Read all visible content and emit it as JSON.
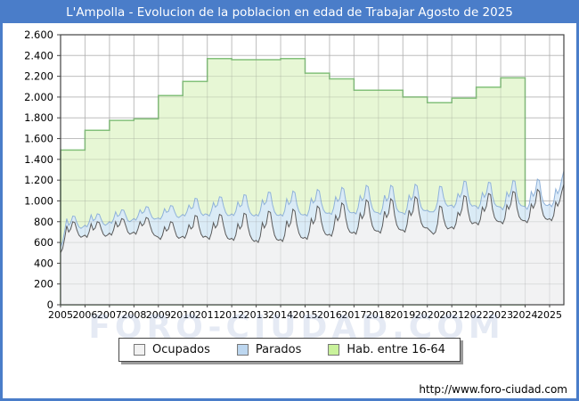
{
  "window": {
    "title": "L'Ampolla - Evolucion de la poblacion en edad de Trabajar Agosto de 2025"
  },
  "watermark": "FORO-CIUDAD.COM",
  "footer": {
    "url": "http://www.foro-ciudad.com"
  },
  "colors": {
    "frame_blue": "#4a7dc9",
    "grid": "#cfcfcf",
    "plot_border": "#444444",
    "ocupados_fill": "#f2f2f2",
    "ocupados_stroke": "#5a5a5a",
    "parados_fill": "#d9e9f9",
    "parados_stroke": "#8fb2da",
    "hab_fill": "#e3f6ce",
    "hab_stroke": "#83c17a"
  },
  "chart_data": {
    "type": "area",
    "title": "L'Ampolla - Evolucion de la poblacion en edad de Trabajar Agosto de 2025",
    "xlabel": "",
    "ylabel": "",
    "ylim": [
      0,
      2600
    ],
    "ytick_step": 200,
    "ytick_labels": [
      "0",
      "200",
      "400",
      "600",
      "800",
      "1.000",
      "1.200",
      "1.400",
      "1.600",
      "1.800",
      "2.000",
      "2.200",
      "2.400",
      "2.600"
    ],
    "xtick_labels": [
      "2005",
      "2006",
      "2007",
      "2008",
      "2009",
      "2010",
      "2011",
      "2012",
      "2013",
      "2014",
      "2015",
      "2016",
      "2017",
      "2018",
      "2019",
      "2020",
      "2021",
      "2022",
      "2023",
      "2024",
      "2025"
    ],
    "grid": true,
    "legend_position": "bottom",
    "start_year": 2005,
    "end_label": "Agosto 2025",
    "legend": [
      {
        "label": "Ocupados",
        "swatch": "#f2f2f2"
      },
      {
        "label": "Parados",
        "swatch": "#bdd7f0"
      },
      {
        "label": "Hab. entre 16-64",
        "swatch": "#c9f29b"
      }
    ],
    "series": [
      {
        "name": "Ocupados",
        "kind": "monthly",
        "values": [
          500,
          540,
          640,
          760,
          700,
          730,
          800,
          790,
          720,
          670,
          650,
          660,
          670,
          650,
          700,
          780,
          720,
          740,
          800,
          790,
          730,
          680,
          660,
          670,
          690,
          670,
          720,
          800,
          750,
          770,
          830,
          820,
          760,
          700,
          680,
          690,
          700,
          680,
          730,
          800,
          760,
          780,
          840,
          830,
          760,
          700,
          670,
          660,
          650,
          630,
          670,
          750,
          710,
          730,
          800,
          790,
          720,
          660,
          640,
          650,
          660,
          640,
          690,
          770,
          730,
          750,
          860,
          850,
          750,
          680,
          650,
          660,
          650,
          630,
          690,
          790,
          740,
          770,
          870,
          860,
          760,
          680,
          640,
          630,
          640,
          620,
          670,
          780,
          730,
          760,
          880,
          870,
          750,
          670,
          630,
          610,
          620,
          600,
          660,
          790,
          740,
          780,
          900,
          890,
          760,
          670,
          630,
          620,
          630,
          610,
          670,
          810,
          750,
          790,
          920,
          900,
          770,
          690,
          650,
          640,
          650,
          630,
          700,
          830,
          780,
          820,
          950,
          930,
          800,
          720,
          680,
          670,
          680,
          660,
          730,
          860,
          810,
          850,
          980,
          960,
          830,
          740,
          700,
          690,
          700,
          680,
          750,
          880,
          830,
          870,
          1010,
          990,
          850,
          760,
          720,
          710,
          710,
          690,
          760,
          900,
          840,
          880,
          1020,
          1000,
          860,
          770,
          730,
          720,
          720,
          700,
          770,
          910,
          860,
          900,
          1040,
          1020,
          880,
          790,
          750,
          740,
          740,
          720,
          700,
          680,
          700,
          780,
          950,
          940,
          830,
          760,
          730,
          740,
          750,
          730,
          780,
          890,
          860,
          920,
          1050,
          1040,
          900,
          810,
          780,
          790,
          790,
          770,
          820,
          940,
          900,
          950,
          1070,
          1060,
          920,
          840,
          810,
          800,
          800,
          780,
          830,
          960,
          920,
          970,
          1090,
          1080,
          930,
          850,
          820,
          810,
          810,
          790,
          840,
          970,
          930,
          980,
          1110,
          1090,
          940,
          860,
          830,
          820,
          830,
          810,
          860,
          990,
          950,
          1000,
          1090,
          1160
        ]
      },
      {
        "name": "Parados",
        "kind": "monthly-stacked-on-Ocupados",
        "values": [
          60,
          65,
          70,
          70,
          65,
          60,
          55,
          60,
          70,
          80,
          85,
          90,
          95,
          100,
          95,
          85,
          90,
          85,
          75,
          80,
          90,
          100,
          105,
          110,
          110,
          115,
          105,
          95,
          100,
          95,
          85,
          90,
          100,
          110,
          120,
          125,
          130,
          135,
          125,
          115,
          120,
          115,
          105,
          110,
          125,
          140,
          155,
          170,
          185,
          195,
          190,
          175,
          180,
          170,
          155,
          160,
          175,
          190,
          200,
          205,
          210,
          215,
          205,
          190,
          195,
          185,
          165,
          170,
          185,
          200,
          210,
          215,
          220,
          225,
          215,
          195,
          200,
          190,
          170,
          175,
          190,
          210,
          220,
          230,
          235,
          240,
          230,
          210,
          215,
          200,
          180,
          185,
          200,
          220,
          235,
          245,
          250,
          255,
          245,
          220,
          225,
          210,
          185,
          190,
          205,
          225,
          235,
          240,
          240,
          245,
          235,
          210,
          215,
          200,
          175,
          180,
          195,
          210,
          220,
          225,
          220,
          225,
          215,
          195,
          200,
          185,
          160,
          165,
          180,
          195,
          205,
          210,
          205,
          210,
          200,
          180,
          185,
          170,
          150,
          155,
          170,
          180,
          190,
          195,
          190,
          195,
          185,
          170,
          175,
          160,
          140,
          145,
          155,
          170,
          175,
          180,
          175,
          180,
          170,
          155,
          160,
          150,
          130,
          135,
          145,
          155,
          165,
          170,
          165,
          170,
          160,
          145,
          150,
          140,
          120,
          125,
          135,
          150,
          160,
          165,
          170,
          175,
          195,
          215,
          220,
          210,
          190,
          195,
          205,
          215,
          220,
          215,
          210,
          205,
          195,
          180,
          175,
          160,
          140,
          145,
          155,
          165,
          170,
          165,
          160,
          155,
          150,
          140,
          135,
          125,
          110,
          115,
          125,
          135,
          140,
          145,
          140,
          135,
          130,
          125,
          120,
          115,
          105,
          110,
          120,
          130,
          135,
          140,
          135,
          130,
          125,
          120,
          115,
          110,
          100,
          105,
          115,
          125,
          130,
          135,
          140,
          135,
          130,
          125,
          120,
          115,
          120,
          130
        ]
      },
      {
        "name": "Hab. entre 16-64",
        "kind": "annual-steps",
        "years": [
          2005,
          2006,
          2007,
          2008,
          2009,
          2010,
          2011,
          2012,
          2013,
          2014,
          2015,
          2016,
          2017,
          2018,
          2019,
          2020,
          2021,
          2022,
          2023
        ],
        "values": [
          1490,
          1680,
          1775,
          1790,
          2015,
          2150,
          2370,
          2360,
          2360,
          2370,
          2230,
          2175,
          2065,
          2065,
          2000,
          1945,
          1990,
          2095,
          2185
        ]
      }
    ]
  }
}
